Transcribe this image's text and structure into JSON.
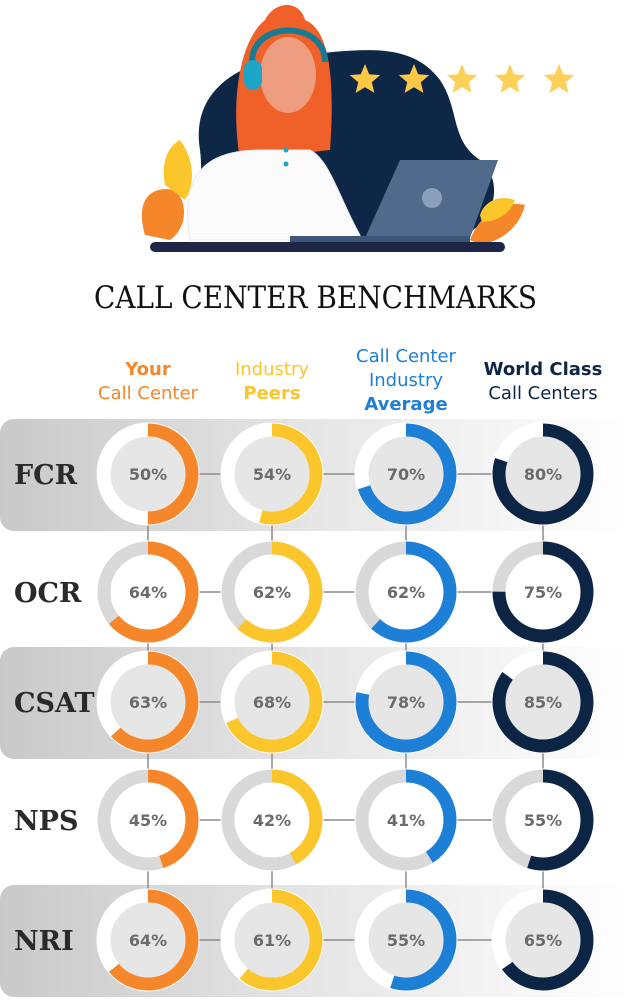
{
  "title": "CALL CENTER BENCHMARKS",
  "chart_data": {
    "type": "donut-grid",
    "title": "CALL CENTER BENCHMARKS",
    "columns": [
      {
        "key": "your",
        "lines": [
          {
            "text": "Your",
            "bold": true
          },
          {
            "text": "Call Center",
            "bold": false
          }
        ],
        "color": "#f5862a"
      },
      {
        "key": "peers",
        "lines": [
          {
            "text": "Industry",
            "bold": false
          },
          {
            "text": "Peers",
            "bold": true
          }
        ],
        "color": "#fbc52c"
      },
      {
        "key": "avg",
        "lines": [
          {
            "text": "Call Center",
            "bold": false
          },
          {
            "text": "Industry",
            "bold": false
          },
          {
            "text": "Average",
            "bold": true
          }
        ],
        "color": "#1e7fd6"
      },
      {
        "key": "world",
        "lines": [
          {
            "text": "World Class",
            "bold": true
          },
          {
            "text": "Call Centers",
            "bold": false
          }
        ],
        "color": "#0d2545"
      }
    ],
    "rows": [
      {
        "metric": "FCR",
        "values": [
          50,
          54,
          70,
          80
        ],
        "shaded": true
      },
      {
        "metric": "OCR",
        "values": [
          64,
          62,
          62,
          75
        ],
        "shaded": false
      },
      {
        "metric": "CSAT",
        "values": [
          63,
          68,
          78,
          85
        ],
        "shaded": true
      },
      {
        "metric": "NPS",
        "values": [
          45,
          42,
          41,
          55
        ],
        "shaded": false
      },
      {
        "metric": "NRI",
        "values": [
          64,
          61,
          55,
          65
        ],
        "shaded": true
      }
    ],
    "unit": "%"
  },
  "illustration": {
    "stars": 5,
    "icons": [
      "headset-agent",
      "laptop",
      "star",
      "leaf"
    ]
  }
}
